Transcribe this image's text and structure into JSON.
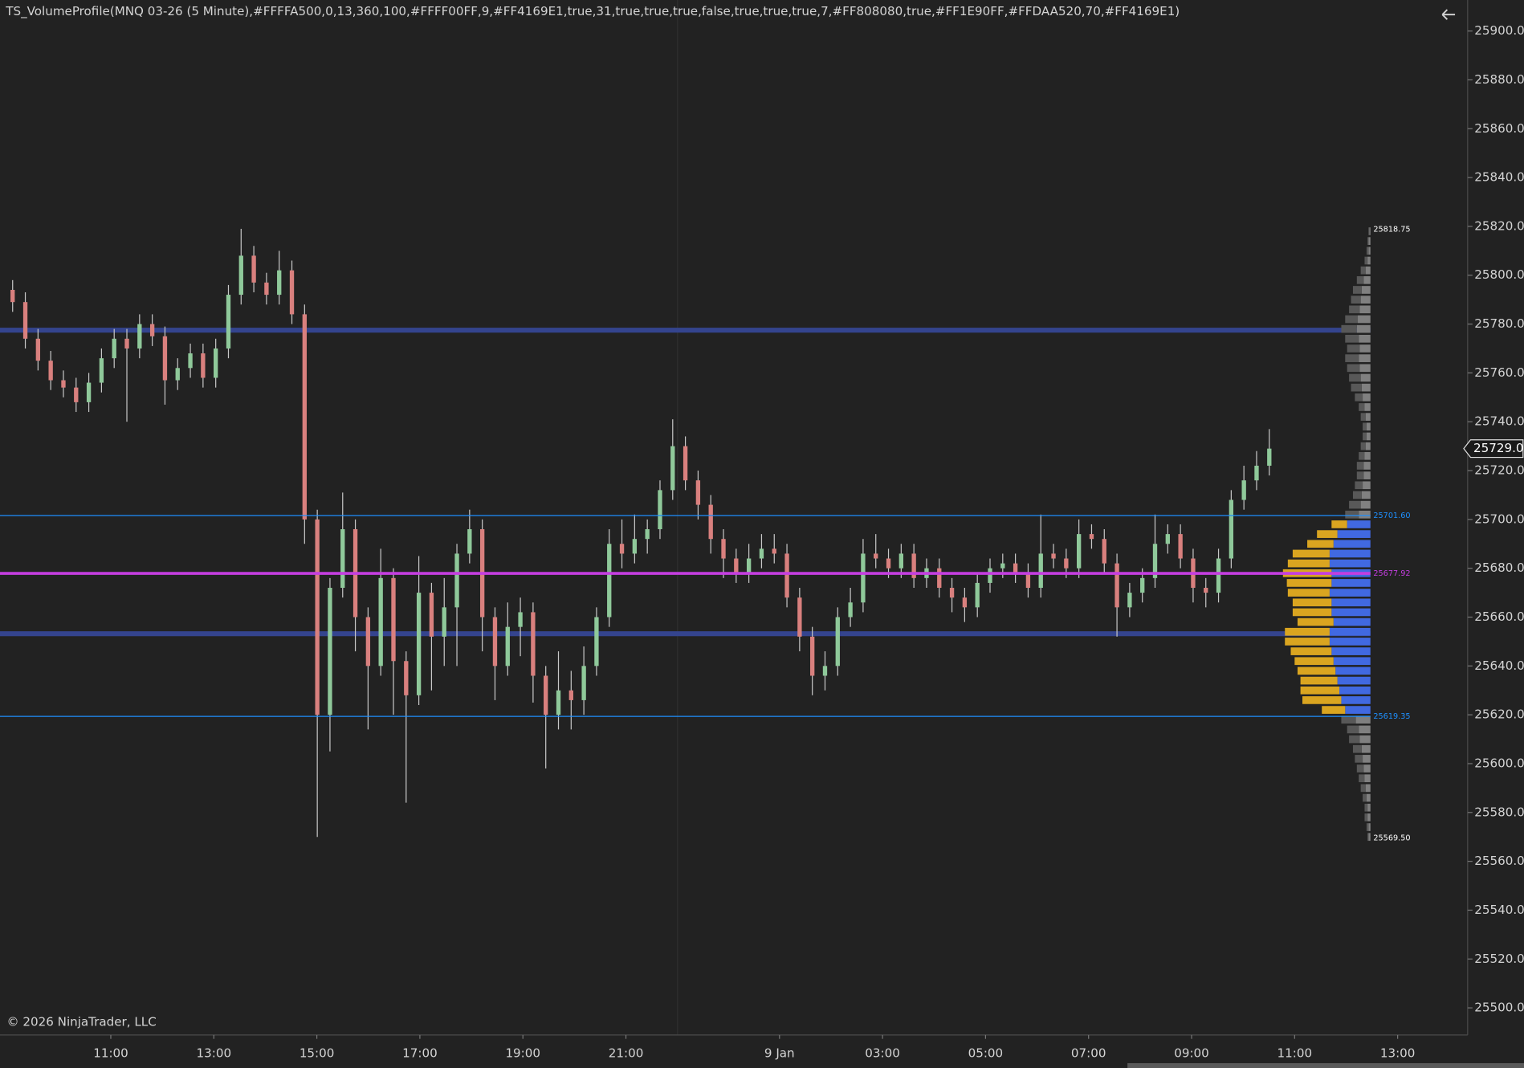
{
  "chart_data": {
    "type": "candlestick",
    "title": "TS_VolumeProfile(MNQ 03-26 (5 Minute),#FFFFA500,0,13,360,100,#FFFF00FF,9,#FF4169E1,true,31,true,true,true,false,true,true,true,7,#FF808080,true,#FF1E90FF,#FFDAA520,70,#FF4169E1)",
    "footer": "© 2026 NinjaTrader, LLC",
    "colors": {
      "up": "#8fc99a",
      "down": "#d9807e",
      "wick": "#c8c8c8"
    },
    "open": [
      25794,
      25789,
      25774,
      25765,
      25757,
      25754,
      25748,
      25756,
      25766,
      25774,
      25770,
      25780,
      25775,
      25757,
      25762,
      25768,
      25758,
      25770,
      25792,
      25808,
      25797,
      25792,
      25802,
      25784,
      25700,
      25620,
      25672,
      25696,
      25660,
      25640,
      25676,
      25642,
      25628,
      25670,
      25652,
      25664,
      25686,
      25696,
      25660,
      25640,
      25656,
      25662,
      25636,
      25620,
      25630,
      25626,
      25640,
      25660,
      25690,
      25686,
      25692,
      25696,
      25712,
      25730,
      25716,
      25706,
      25692,
      25684,
      25678,
      25684,
      25688,
      25686,
      25668,
      25652,
      25636,
      25640,
      25660,
      25666,
      25686,
      25684,
      25680,
      25686,
      25676,
      25680,
      25672,
      25668,
      25664,
      25674,
      25680,
      25682,
      25678,
      25672,
      25686,
      25684,
      25680,
      25694,
      25692,
      25682,
      25664,
      25670,
      25676,
      25690,
      25694,
      25684,
      25672,
      25670,
      25684,
      25708,
      25716,
      25722
    ],
    "high": [
      25798,
      25793,
      25778,
      25769,
      25761,
      25758,
      25760,
      25770,
      25778,
      25778,
      25784,
      25784,
      25779,
      25766,
      25772,
      25772,
      25774,
      25796,
      25819,
      25812,
      25801,
      25810,
      25806,
      25788,
      25704,
      25676,
      25711,
      25700,
      25664,
      25688,
      25680,
      25646,
      25685,
      25674,
      25676,
      25690,
      25704,
      25700,
      25664,
      25666,
      25668,
      25666,
      25640,
      25646,
      25638,
      25648,
      25664,
      25696,
      25700,
      25702,
      25700,
      25716,
      25741,
      25734,
      25720,
      25710,
      25696,
      25688,
      25690,
      25694,
      25694,
      25690,
      25672,
      25656,
      25646,
      25664,
      25672,
      25692,
      25694,
      25688,
      25690,
      25690,
      25684,
      25684,
      25676,
      25672,
      25678,
      25684,
      25686,
      25686,
      25682,
      25702,
      25690,
      25688,
      25700,
      25698,
      25696,
      25686,
      25674,
      25680,
      25702,
      25698,
      25698,
      25688,
      25676,
      25688,
      25712,
      25722,
      25728,
      25737
    ],
    "low": [
      25785,
      25770,
      25761,
      25753,
      25750,
      25744,
      25744,
      25752,
      25762,
      25740,
      25766,
      25771,
      25747,
      25753,
      25758,
      25754,
      25754,
      25766,
      25788,
      25793,
      25788,
      25788,
      25780,
      25690,
      25570,
      25605,
      25668,
      25646,
      25614,
      25636,
      25620,
      25584,
      25624,
      25630,
      25640,
      25640,
      25682,
      25646,
      25626,
      25636,
      25644,
      25625,
      25598,
      25614,
      25614,
      25620,
      25636,
      25656,
      25680,
      25682,
      25686,
      25692,
      25708,
      25712,
      25700,
      25686,
      25676,
      25674,
      25674,
      25680,
      25682,
      25664,
      25646,
      25628,
      25630,
      25636,
      25656,
      25662,
      25680,
      25676,
      25676,
      25672,
      25672,
      25668,
      25662,
      25658,
      25660,
      25670,
      25676,
      25674,
      25668,
      25668,
      25680,
      25676,
      25676,
      25688,
      25678,
      25652,
      25660,
      25666,
      25672,
      25686,
      25680,
      25666,
      25664,
      25666,
      25680,
      25704,
      25712,
      25718
    ],
    "close": [
      25789,
      25774,
      25765,
      25757,
      25754,
      25748,
      25756,
      25766,
      25774,
      25770,
      25780,
      25775,
      25757,
      25762,
      25768,
      25758,
      25770,
      25792,
      25808,
      25797,
      25792,
      25802,
      25784,
      25700,
      25620,
      25672,
      25696,
      25660,
      25640,
      25676,
      25642,
      25628,
      25670,
      25652,
      25664,
      25686,
      25696,
      25660,
      25640,
      25656,
      25662,
      25636,
      25620,
      25630,
      25626,
      25640,
      25660,
      25690,
      25686,
      25692,
      25696,
      25712,
      25730,
      25716,
      25706,
      25692,
      25684,
      25678,
      25684,
      25688,
      25686,
      25668,
      25652,
      25636,
      25640,
      25660,
      25666,
      25686,
      25684,
      25680,
      25686,
      25676,
      25680,
      25672,
      25668,
      25664,
      25674,
      25680,
      25682,
      25678,
      25672,
      25686,
      25684,
      25680,
      25694,
      25692,
      25682,
      25664,
      25670,
      25676,
      25690,
      25694,
      25684,
      25672,
      25670,
      25684,
      25708,
      25716,
      25722,
      25729
    ],
    "ylim": [
      25488.9,
      25912.7
    ],
    "yticks": [
      {
        "value": 25500,
        "label": "25500.00"
      },
      {
        "value": 25520,
        "label": "25520.00"
      },
      {
        "value": 25540,
        "label": "25540.00"
      },
      {
        "value": 25560,
        "label": "25560.00"
      },
      {
        "value": 25580,
        "label": "25580.00"
      },
      {
        "value": 25600,
        "label": "25600.00"
      },
      {
        "value": 25620,
        "label": "25620.00"
      },
      {
        "value": 25640,
        "label": "25640.00"
      },
      {
        "value": 25660,
        "label": "25660.00"
      },
      {
        "value": 25680,
        "label": "25680.00"
      },
      {
        "value": 25700,
        "label": "25700.00"
      },
      {
        "value": 25720,
        "label": "25720.00"
      },
      {
        "value": 25740,
        "label": "25740.00"
      },
      {
        "value": 25760,
        "label": "25760.00"
      },
      {
        "value": 25780,
        "label": "25780.00"
      },
      {
        "value": 25800,
        "label": "25800.00"
      },
      {
        "value": 25820,
        "label": "25820.00"
      },
      {
        "value": 25840,
        "label": "25840.00"
      },
      {
        "value": 25860,
        "label": "25860.00"
      },
      {
        "value": 25880,
        "label": "25880.00"
      },
      {
        "value": 25900,
        "label": "25900.00"
      }
    ],
    "xticks": [
      "11:00",
      "13:00",
      "15:00",
      "17:00",
      "19:00",
      "21:00",
      "9 Jan",
      "03:00",
      "05:00",
      "07:00",
      "09:00",
      "11:00",
      "13:00"
    ],
    "last_price": {
      "value": 25729,
      "label": "25729.00"
    },
    "prior_levels": [
      {
        "value": 25777.5,
        "color": "#34448e"
      },
      {
        "value": 25653.2,
        "color": "#34448e"
      }
    ],
    "levels": [
      {
        "value": 25818.75,
        "label": "25818.75",
        "color": "#ffffff",
        "line": "none",
        "role": "high"
      },
      {
        "value": 25701.6,
        "label": "25701.60",
        "color": "#1E90FF",
        "line": "thin",
        "role": "vah"
      },
      {
        "value": 25677.92,
        "label": "25677.92",
        "color": "#c43ee0",
        "line": "thick",
        "role": "poc"
      },
      {
        "value": 25619.35,
        "label": "25619.35",
        "color": "#1E90FF",
        "line": "thin",
        "role": "val"
      },
      {
        "value": 25569.5,
        "label": "25569.50",
        "color": "#ffffff",
        "line": "none",
        "role": "low"
      }
    ],
    "profile": {
      "colors": {
        "va_right": "#4169E1",
        "va_left": "#DAA520",
        "right": "#808080",
        "left": "#585858"
      },
      "prices": [
        25818,
        25814,
        25810,
        25806,
        25802,
        25798,
        25794,
        25790,
        25786,
        25782,
        25778,
        25774,
        25770,
        25766,
        25762,
        25758,
        25754,
        25750,
        25746,
        25742,
        25738,
        25734,
        25730,
        25726,
        25722,
        25718,
        25714,
        25710,
        25706,
        25702,
        25698,
        25694,
        25690,
        25686,
        25682,
        25678,
        25674,
        25670,
        25666,
        25662,
        25658,
        25654,
        25650,
        25646,
        25642,
        25638,
        25634,
        25630,
        25626,
        25622,
        25618,
        25614,
        25610,
        25606,
        25602,
        25598,
        25594,
        25590,
        25586,
        25582,
        25578,
        25574,
        25570
      ],
      "right": [
        1,
        2,
        2,
        3,
        5,
        7,
        9,
        10,
        11,
        13,
        14,
        12,
        11,
        12,
        11,
        10,
        9,
        8,
        6,
        5,
        4,
        4,
        5,
        6,
        7,
        7,
        8,
        9,
        10,
        12,
        24,
        34,
        38,
        42,
        42,
        40,
        40,
        42,
        40,
        40,
        38,
        42,
        42,
        40,
        38,
        36,
        34,
        32,
        30,
        26,
        15,
        12,
        11,
        9,
        8,
        7,
        6,
        5,
        4,
        3,
        3,
        2,
        2
      ],
      "left": [
        1,
        1,
        2,
        3,
        5,
        7,
        9,
        10,
        11,
        13,
        16,
        14,
        13,
        14,
        13,
        12,
        11,
        8,
        6,
        5,
        4,
        4,
        5,
        6,
        7,
        7,
        8,
        9,
        12,
        14,
        16,
        21,
        27,
        38,
        43,
        50,
        46,
        43,
        40,
        40,
        37,
        46,
        46,
        42,
        40,
        39,
        38,
        40,
        40,
        24,
        15,
        12,
        11,
        9,
        8,
        7,
        6,
        5,
        4,
        3,
        3,
        2,
        1
      ]
    }
  }
}
